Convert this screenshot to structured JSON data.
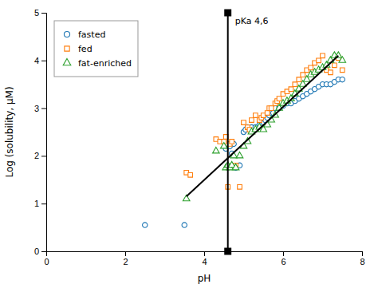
{
  "chart_data": {
    "type": "scatter",
    "xlabel": "pH",
    "ylabel": "Log (solubility, μM)",
    "xlim": [
      0,
      8
    ],
    "ylim": [
      0,
      5
    ],
    "xticks": [
      0,
      2,
      4,
      6,
      8
    ],
    "yticks": [
      0,
      1,
      2,
      3,
      4,
      5
    ],
    "grid": false,
    "legend": "upper left",
    "series": [
      {
        "name": "fasted",
        "marker": "circle",
        "x": [
          2.5,
          3.5,
          4.55,
          4.65,
          4.7,
          4.75,
          4.8,
          4.9,
          5.0,
          5.05,
          5.1,
          5.2,
          5.3,
          5.4,
          5.5,
          5.55,
          5.6,
          5.65,
          5.7,
          5.75,
          5.8,
          5.9,
          6.0,
          6.1,
          6.2,
          6.3,
          6.4,
          6.5,
          6.6,
          6.7,
          6.8,
          6.9,
          7.0,
          7.1,
          7.2,
          7.3,
          7.4,
          7.5
        ],
        "values": [
          0.55,
          0.55,
          2.15,
          2.2,
          2.05,
          2.25,
          1.75,
          1.8,
          2.5,
          2.55,
          2.6,
          2.6,
          2.6,
          2.65,
          2.7,
          2.75,
          2.8,
          2.85,
          2.9,
          2.9,
          3.0,
          3.0,
          3.05,
          3.1,
          3.1,
          3.15,
          3.2,
          3.25,
          3.3,
          3.35,
          3.4,
          3.45,
          3.5,
          3.5,
          3.5,
          3.55,
          3.6,
          3.6
        ]
      },
      {
        "name": "fed",
        "marker": "square",
        "x": [
          3.55,
          3.65,
          4.3,
          4.4,
          4.5,
          4.55,
          4.6,
          4.65,
          4.7,
          4.8,
          4.9,
          5.0,
          5.1,
          5.15,
          5.2,
          5.3,
          5.4,
          5.45,
          5.5,
          5.6,
          5.65,
          5.7,
          5.8,
          5.85,
          5.9,
          6.0,
          6.1,
          6.2,
          6.3,
          6.4,
          6.5,
          6.6,
          6.7,
          6.8,
          6.9,
          7.0,
          7.1,
          7.2,
          7.3,
          7.4,
          7.5
        ],
        "values": [
          1.65,
          1.6,
          2.35,
          2.3,
          2.3,
          2.4,
          1.35,
          2.25,
          2.3,
          1.8,
          1.35,
          2.7,
          2.6,
          2.55,
          2.75,
          2.85,
          2.75,
          2.8,
          2.85,
          2.9,
          3.0,
          3.0,
          3.1,
          3.15,
          3.2,
          3.3,
          3.35,
          3.4,
          3.5,
          3.6,
          3.7,
          3.8,
          3.85,
          3.95,
          4.0,
          4.1,
          3.8,
          3.75,
          3.9,
          4.05,
          3.8
        ]
      },
      {
        "name": "fat-enriched",
        "marker": "triangle",
        "x": [
          3.55,
          4.3,
          4.5,
          4.55,
          4.6,
          4.65,
          4.7,
          4.75,
          4.8,
          4.9,
          5.0,
          5.1,
          5.2,
          5.3,
          5.4,
          5.5,
          5.6,
          5.7,
          5.8,
          5.9,
          6.0,
          6.1,
          6.2,
          6.3,
          6.4,
          6.5,
          6.6,
          6.7,
          6.8,
          6.9,
          7.0,
          7.1,
          7.2,
          7.3,
          7.4,
          7.5
        ],
        "values": [
          1.1,
          2.1,
          2.2,
          1.75,
          1.8,
          1.75,
          1.8,
          2.0,
          1.75,
          2.0,
          2.2,
          2.3,
          2.5,
          2.55,
          2.6,
          2.55,
          2.65,
          2.75,
          2.85,
          3.0,
          3.1,
          3.15,
          3.2,
          3.3,
          3.4,
          3.5,
          3.6,
          3.7,
          3.75,
          3.8,
          3.85,
          3.9,
          4.0,
          4.1,
          4.1,
          4.0
        ]
      },
      {
        "type": "line",
        "color": "black",
        "line_style": "solid",
        "x": [
          3.55,
          7.4
        ],
        "values": [
          1.15,
          4.1
        ]
      }
    ],
    "annotations": [
      {
        "text": "pKa 4,6",
        "x": 4.6,
        "y_range": [
          0,
          5
        ]
      }
    ]
  }
}
